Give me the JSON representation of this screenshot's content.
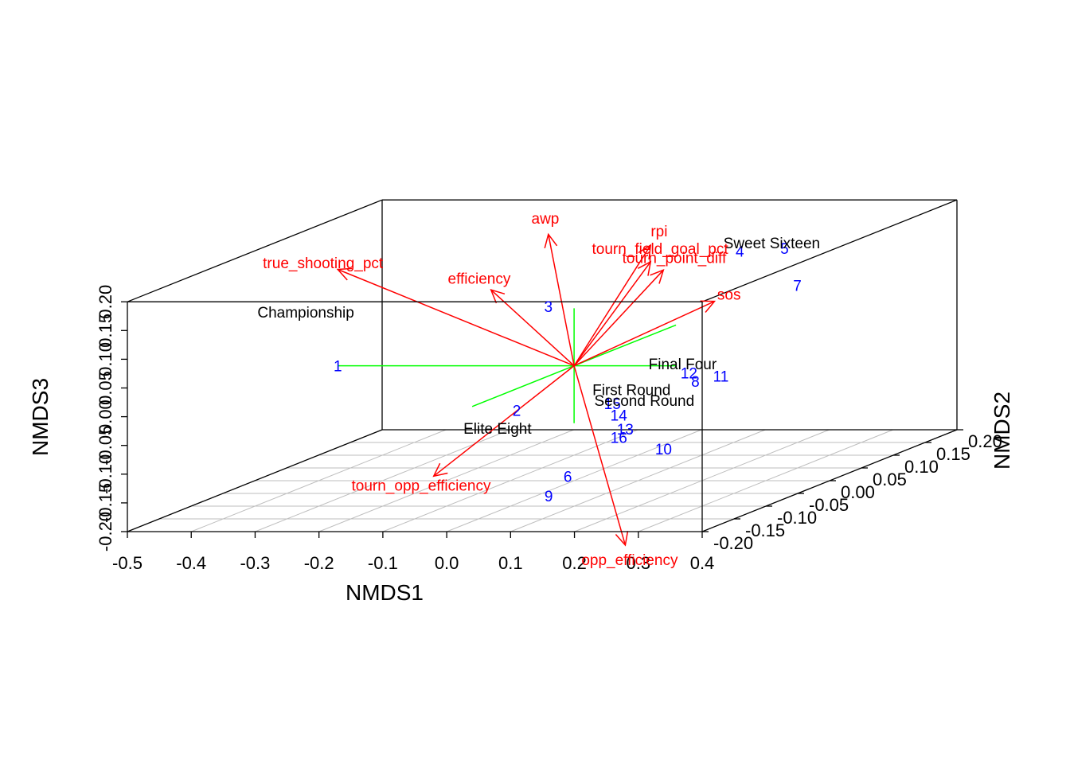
{
  "chart_data": {
    "type": "scatter",
    "title": "",
    "xlabel": "NMDS1",
    "ylabel": "NMDS2",
    "zlabel": "NMDS3",
    "x_ticks": [
      "-0.5",
      "-0.4",
      "-0.3",
      "-0.2",
      "-0.1",
      "0.0",
      "0.1",
      "0.2",
      "0.3",
      "0.4"
    ],
    "y_ticks": [
      "-0.20",
      "-0.15",
      "-0.10",
      "-0.05",
      "0.00",
      "0.05",
      "0.10",
      "0.15",
      "0.20"
    ],
    "z_ticks": [
      "-0.20",
      "-0.15",
      "-0.10",
      "-0.05",
      "0.00",
      "0.05",
      "0.10",
      "0.15",
      "0.20"
    ],
    "xlim": [
      -0.5,
      0.4
    ],
    "ylim": [
      -0.2,
      0.2
    ],
    "zlim": [
      -0.2,
      0.2
    ],
    "grid": "floor",
    "colors": {
      "sites": "#0000ff",
      "vectors": "#ff0000",
      "centroid_axes": "#00ff00",
      "groups": "#000000",
      "box": "#000000",
      "grid": "#bebebe"
    },
    "sites": [
      {
        "label": "1",
        "x": -0.37,
        "y": 0.0,
        "z": 0.0
      },
      {
        "label": "2",
        "x": -0.05,
        "y": -0.04,
        "z": -0.06
      },
      {
        "label": "3",
        "x": -0.16,
        "y": 0.12,
        "z": 0.05
      },
      {
        "label": "4",
        "x": 0.08,
        "y": 0.18,
        "z": 0.12
      },
      {
        "label": "5",
        "x": 0.14,
        "y": 0.19,
        "z": 0.12
      },
      {
        "label": "6",
        "x": 0.04,
        "y": -0.05,
        "z": -0.17
      },
      {
        "label": "7",
        "x": 0.17,
        "y": 0.18,
        "z": 0.06
      },
      {
        "label": "8",
        "x": 0.16,
        "y": 0.03,
        "z": -0.04
      },
      {
        "label": "9",
        "x": 0.02,
        "y": -0.06,
        "z": -0.2
      },
      {
        "label": "10",
        "x": 0.15,
        "y": -0.01,
        "z": -0.14
      },
      {
        "label": "11",
        "x": 0.18,
        "y": 0.05,
        "z": -0.04
      },
      {
        "label": "12",
        "x": 0.14,
        "y": 0.04,
        "z": -0.03
      },
      {
        "label": "13",
        "x": 0.08,
        "y": 0.0,
        "z": -0.11
      },
      {
        "label": "14",
        "x": 0.06,
        "y": 0.01,
        "z": -0.09
      },
      {
        "label": "15",
        "x": 0.05,
        "y": 0.01,
        "z": -0.07
      },
      {
        "label": "16",
        "x": 0.08,
        "y": -0.01,
        "z": -0.12
      }
    ],
    "groups": [
      {
        "label": "Championship",
        "x": -0.45,
        "y": 0.03,
        "z": 0.08
      },
      {
        "label": "Sweet Sixteen",
        "x": 0.12,
        "y": 0.19,
        "z": 0.13
      },
      {
        "label": "Final Four",
        "x": 0.14,
        "y": 0.03,
        "z": -0.01
      },
      {
        "label": "First Round",
        "x": 0.07,
        "y": 0.02,
        "z": -0.05
      },
      {
        "label": "Second Round",
        "x": 0.11,
        "y": 0.0,
        "z": -0.06
      },
      {
        "label": "Elite Eight",
        "x": -0.1,
        "y": -0.02,
        "z": -0.1
      }
    ],
    "vectors": [
      {
        "name": "awp",
        "x": -0.15,
        "y": 0.11,
        "z": 0.18
      },
      {
        "name": "true_shooting_pct",
        "x": -0.41,
        "y": 0.04,
        "z": 0.15
      },
      {
        "name": "efficiency",
        "x": -0.18,
        "y": 0.05,
        "z": 0.11
      },
      {
        "name": "rpi",
        "x": 0.03,
        "y": 0.09,
        "z": 0.17
      },
      {
        "name": "tourn_field_goal_pct",
        "x": 0.05,
        "y": 0.07,
        "z": 0.15
      },
      {
        "name": "tourn_point_diff",
        "x": 0.08,
        "y": 0.06,
        "z": 0.14
      },
      {
        "name": "sos",
        "x": 0.17,
        "y": 0.05,
        "z": 0.09
      },
      {
        "name": "tourn_opp_efficiency",
        "x": -0.17,
        "y": -0.05,
        "z": -0.17
      },
      {
        "name": "opp_efficiency",
        "x": 0.13,
        "y": -0.05,
        "z": -0.29
      }
    ]
  }
}
